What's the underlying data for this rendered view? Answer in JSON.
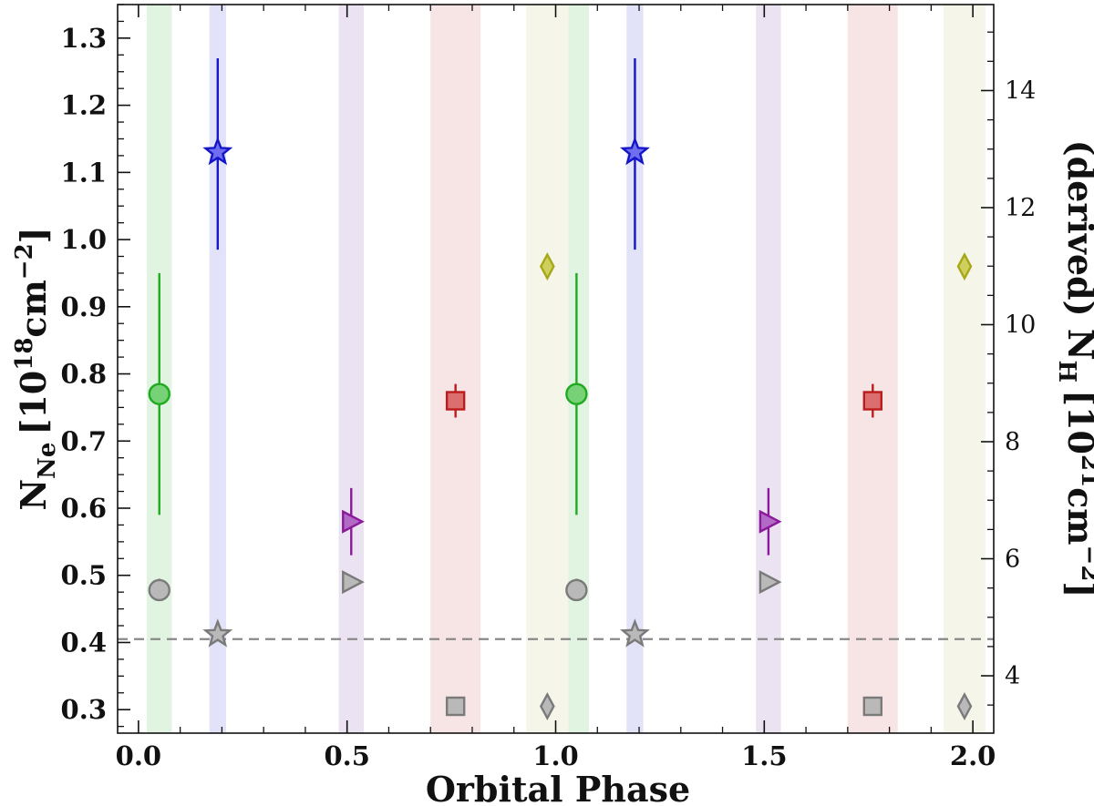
{
  "chart_data": {
    "type": "scatter",
    "xlabel": "Orbital Phase",
    "ylabel": {
      "main": "N",
      "sub": "Ne",
      "bracket_open": "[10",
      "sup": "18",
      "unit": "cm",
      "unit_sup": "−2",
      "bracket_close": "]"
    },
    "y2label": {
      "prefix": "(derived) N",
      "sub": "H",
      "bracket_open": "[10",
      "sup": "21",
      "unit": "cm",
      "unit_sup": "−2",
      "bracket_close": "]"
    },
    "xlim": [
      -0.05,
      2.05
    ],
    "ylim": [
      0.265,
      1.35
    ],
    "y2lim": [
      3.02,
      15.47
    ],
    "x_ticks": [
      "0.0",
      "0.5",
      "1.0",
      "1.5",
      "2.0"
    ],
    "y_ticks": [
      "0.3",
      "0.4",
      "0.5",
      "0.6",
      "0.7",
      "0.8",
      "0.9",
      "1.0",
      "1.1",
      "1.2",
      "1.3"
    ],
    "y2_ticks": [
      "4",
      "6",
      "8",
      "10",
      "12",
      "14"
    ],
    "reference_line": {
      "y": 0.405,
      "style": "dashed",
      "color": "#888888"
    },
    "bands": [
      {
        "x0": 0.02,
        "x1": 0.08,
        "color": "#cdeccd"
      },
      {
        "x0": 0.17,
        "x1": 0.21,
        "color": "#cfd0f5"
      },
      {
        "x0": 0.48,
        "x1": 0.54,
        "color": "#e0d0ea"
      },
      {
        "x0": 0.7,
        "x1": 0.82,
        "color": "#f1d2d2"
      },
      {
        "x0": 0.93,
        "x1": 1.03,
        "color": "#eef0da"
      },
      {
        "x0": 1.03,
        "x1": 1.08,
        "color": "#cdeccd"
      },
      {
        "x0": 1.17,
        "x1": 1.21,
        "color": "#cfd0f5"
      },
      {
        "x0": 1.48,
        "x1": 1.54,
        "color": "#e0d0ea"
      },
      {
        "x0": 1.7,
        "x1": 1.82,
        "color": "#f1d2d2"
      },
      {
        "x0": 1.93,
        "x1": 2.03,
        "color": "#eef0da"
      }
    ],
    "series": [
      {
        "name": "green",
        "marker": "circle",
        "color": "#1faa1f",
        "fill": "#77d177",
        "points": [
          {
            "x": 0.05,
            "y": 0.77,
            "lo": 0.59,
            "hi": 0.95
          },
          {
            "x": 1.05,
            "y": 0.77,
            "lo": 0.59,
            "hi": 0.95
          }
        ]
      },
      {
        "name": "blue",
        "marker": "star",
        "color": "#1515c8",
        "fill": "#6e6eee",
        "points": [
          {
            "x": 0.19,
            "y": 1.13,
            "lo": 0.985,
            "hi": 1.27
          },
          {
            "x": 1.19,
            "y": 1.13,
            "lo": 0.985,
            "hi": 1.27
          }
        ]
      },
      {
        "name": "purple",
        "marker": "triangle-right",
        "color": "#8a1a9a",
        "fill": "#b36ac6",
        "points": [
          {
            "x": 0.51,
            "y": 0.58,
            "lo": 0.53,
            "hi": 0.63
          },
          {
            "x": 1.51,
            "y": 0.58,
            "lo": 0.53,
            "hi": 0.63
          }
        ]
      },
      {
        "name": "red",
        "marker": "square",
        "color": "#bb1c1c",
        "fill": "#db6e6e",
        "points": [
          {
            "x": 0.76,
            "y": 0.76,
            "lo": 0.735,
            "hi": 0.785
          },
          {
            "x": 1.76,
            "y": 0.76,
            "lo": 0.735,
            "hi": 0.785
          }
        ]
      },
      {
        "name": "olive",
        "marker": "diamond",
        "color": "#a7a71a",
        "fill": "#cfcf5e",
        "points": [
          {
            "x": 0.98,
            "y": 0.96
          },
          {
            "x": 1.98,
            "y": 0.96
          }
        ]
      },
      {
        "name": "grey",
        "marker": "mixed",
        "color": "#7a7a7a",
        "fill": "#b9b9b9",
        "points": [
          {
            "x": 0.05,
            "y": 0.478,
            "lo": 0.463,
            "hi": 0.495,
            "marker": "circle"
          },
          {
            "x": 0.19,
            "y": 0.412,
            "marker": "star"
          },
          {
            "x": 0.51,
            "y": 0.49,
            "marker": "triangle-right"
          },
          {
            "x": 0.76,
            "y": 0.305,
            "marker": "square"
          },
          {
            "x": 0.98,
            "y": 0.305,
            "marker": "diamond"
          },
          {
            "x": 1.05,
            "y": 0.478,
            "lo": 0.463,
            "hi": 0.495,
            "marker": "circle"
          },
          {
            "x": 1.19,
            "y": 0.412,
            "marker": "star"
          },
          {
            "x": 1.51,
            "y": 0.49,
            "marker": "triangle-right"
          },
          {
            "x": 1.76,
            "y": 0.305,
            "marker": "square"
          },
          {
            "x": 1.98,
            "y": 0.305,
            "marker": "diamond"
          }
        ]
      }
    ]
  }
}
